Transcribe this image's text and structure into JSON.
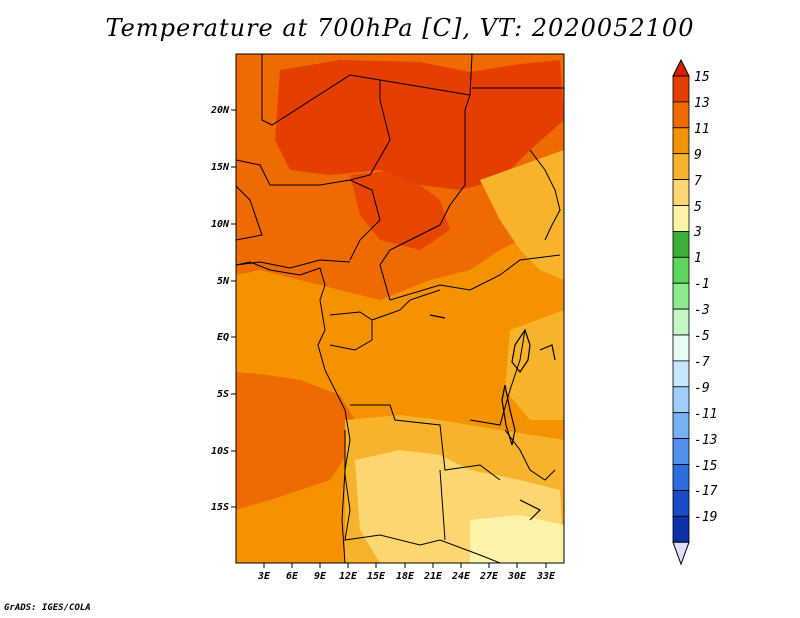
{
  "title": "Temperature at 700hPa [C], VT: 2020052100",
  "credit": "GrADS: IGES/COLA",
  "map": {
    "lat_labels": [
      "20N",
      "15N",
      "10N",
      "5N",
      "EQ",
      "5S",
      "10S",
      "15S"
    ],
    "lon_labels": [
      "3E",
      "6E",
      "9E",
      "12E",
      "15E",
      "18E",
      "21E",
      "24E",
      "27E",
      "30E",
      "33E"
    ]
  },
  "colorbar": {
    "labels": [
      "15",
      "13",
      "11",
      "9",
      "7",
      "5",
      "3",
      "1",
      "-1",
      "-3",
      "-5",
      "-7",
      "-9",
      "-11",
      "-13",
      "-15",
      "-17",
      "-19"
    ],
    "colors": [
      "#d32200",
      "#e63e00",
      "#ef6a00",
      "#f59200",
      "#f8b32c",
      "#fcd670",
      "#fdf3a8",
      "#3bb13b",
      "#5cd65c",
      "#8de98d",
      "#c6f5c6",
      "#e9fbf5",
      "#c6e6ff",
      "#a0cdff",
      "#79b1f7",
      "#5090ef",
      "#2e6de0",
      "#1a4cc8",
      "#0e30a8",
      "#071a80",
      "#000878"
    ],
    "end_low": "#e0e0f8"
  },
  "chart_data": {
    "type": "heatmap",
    "title": "Temperature at 700hPa [C], VT: 2020052100",
    "field": "Temperature at 700hPa [C]",
    "x_ticks": [
      "3E",
      "6E",
      "9E",
      "12E",
      "15E",
      "18E",
      "21E",
      "24E",
      "27E",
      "30E",
      "33E"
    ],
    "y_ticks": [
      "20N",
      "15N",
      "10N",
      "5N",
      "EQ",
      "5S",
      "10S",
      "15S"
    ],
    "color_levels": [
      -19,
      -17,
      -15,
      -13,
      -11,
      -9,
      -7,
      -5,
      -3,
      -1,
      1,
      3,
      5,
      7,
      9,
      11,
      13,
      15
    ]
  }
}
